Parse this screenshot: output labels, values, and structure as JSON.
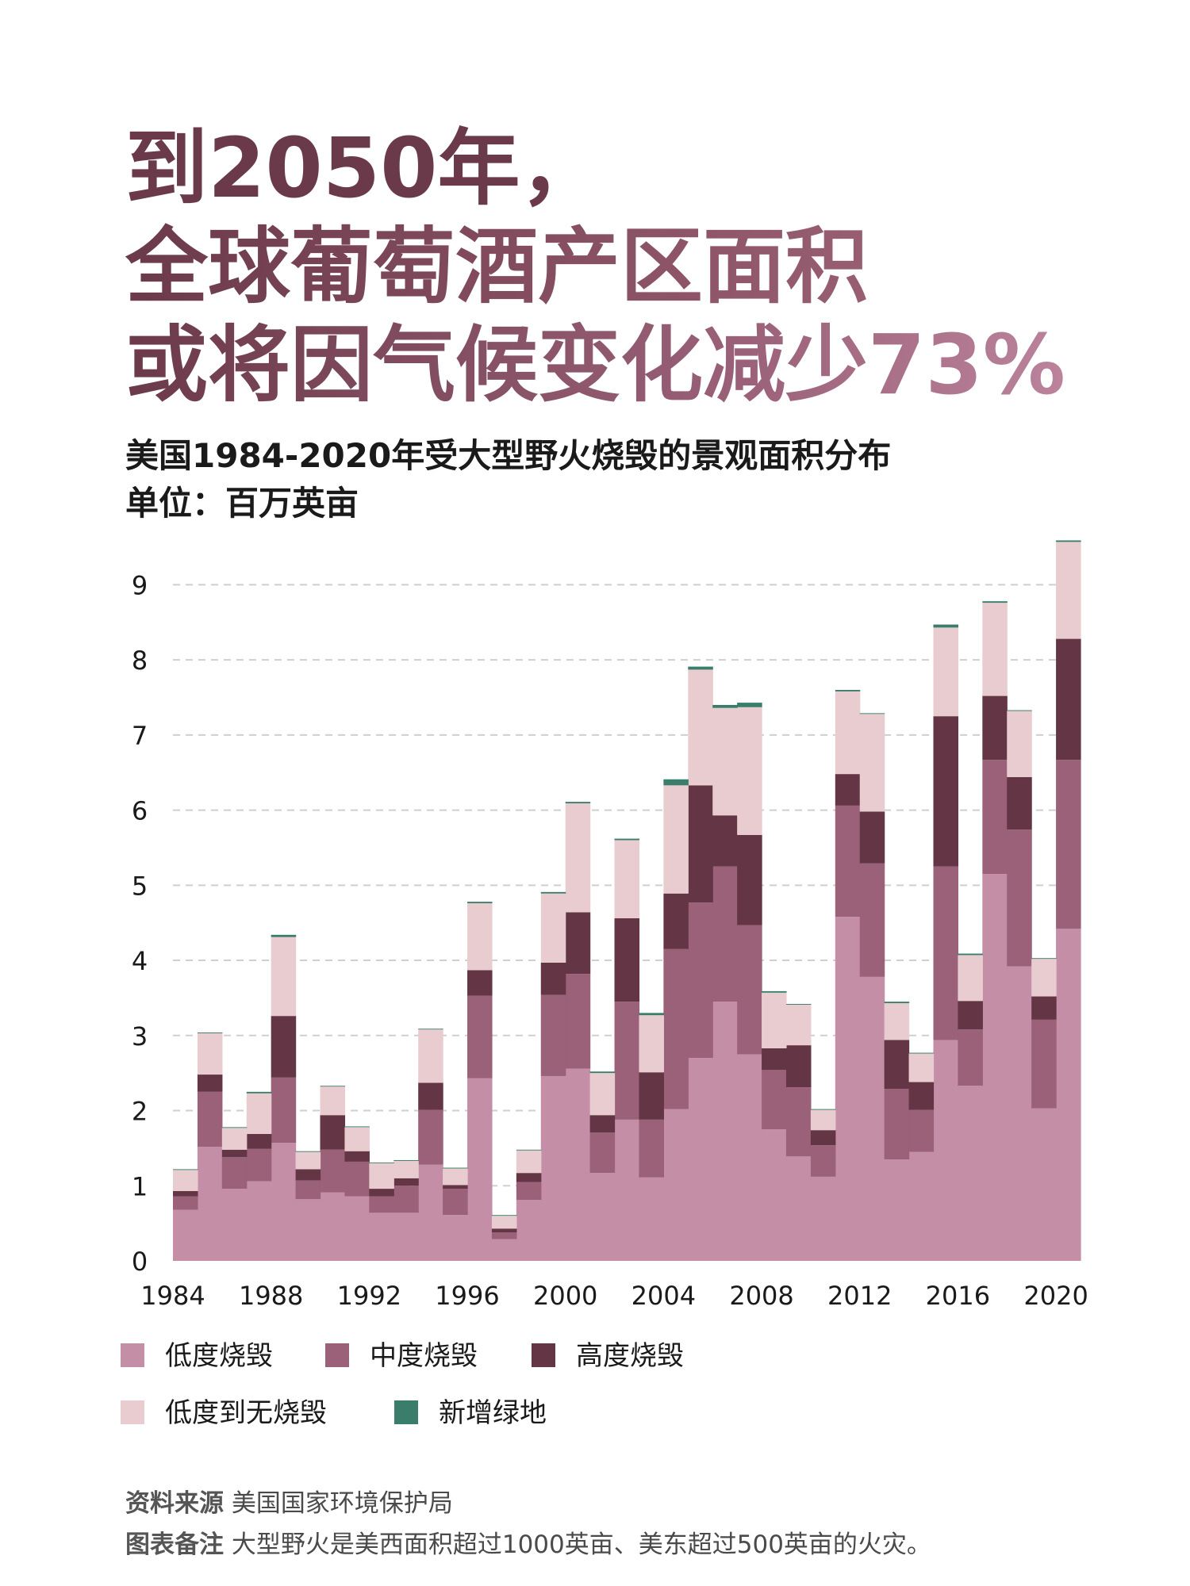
{
  "headline": {
    "line1": "到2050年，",
    "line2": "全球葡萄酒产区面积",
    "line3": "或将因气候变化减少73%"
  },
  "subtitle": {
    "title": "美国1984-2020年受大型野火烧毁的景观面积分布",
    "unit": "单位：百万英亩"
  },
  "colors": {
    "low": "#c48ea7",
    "moderate": "#9a6178",
    "high": "#643645",
    "unburned_low": "#e8cccf",
    "greenness": "#3a7d6a"
  },
  "chart_data": {
    "type": "area",
    "stacked": true,
    "step": true,
    "title": "美国1984-2020年受大型野火烧毁的景观面积分布",
    "ylabel": "单位：百万英亩",
    "ylim": [
      0,
      9.5
    ],
    "yticks": [
      0,
      1,
      2,
      3,
      4,
      5,
      6,
      7,
      8,
      9
    ],
    "xticks": [
      1984,
      1988,
      1992,
      1996,
      2000,
      2004,
      2008,
      2012,
      2016,
      2020
    ],
    "grid": true,
    "years": [
      1984,
      1985,
      1986,
      1987,
      1988,
      1989,
      1990,
      1991,
      1992,
      1993,
      1994,
      1995,
      1996,
      1997,
      1998,
      1999,
      2000,
      2001,
      2002,
      2003,
      2004,
      2005,
      2006,
      2007,
      2008,
      2009,
      2010,
      2011,
      2012,
      2013,
      2014,
      2015,
      2016,
      2017,
      2018,
      2019,
      2020
    ],
    "series": [
      {
        "name": "低度烧毁",
        "key": "low",
        "values": [
          0.68,
          1.52,
          0.96,
          1.06,
          1.57,
          0.82,
          0.91,
          0.86,
          0.64,
          0.64,
          1.28,
          0.61,
          2.43,
          0.29,
          0.81,
          2.46,
          2.56,
          1.17,
          1.88,
          1.11,
          2.02,
          2.7,
          3.45,
          2.75,
          1.75,
          1.39,
          1.12,
          4.58,
          3.78,
          1.35,
          1.45,
          2.94,
          2.33,
          5.15,
          3.92,
          2.03,
          4.42
        ]
      },
      {
        "name": "中度烧毁",
        "key": "moderate",
        "values": [
          0.18,
          0.73,
          0.42,
          0.43,
          0.87,
          0.25,
          0.57,
          0.46,
          0.22,
          0.36,
          0.73,
          0.35,
          1.1,
          0.09,
          0.24,
          1.08,
          1.26,
          0.54,
          1.57,
          0.77,
          2.13,
          2.07,
          1.8,
          1.72,
          0.79,
          0.92,
          0.42,
          1.48,
          1.51,
          0.94,
          0.56,
          2.31,
          0.75,
          1.52,
          1.82,
          1.18,
          2.25
        ]
      },
      {
        "name": "高度烧毁",
        "key": "high",
        "values": [
          0.07,
          0.23,
          0.1,
          0.2,
          0.82,
          0.15,
          0.46,
          0.14,
          0.1,
          0.1,
          0.36,
          0.05,
          0.34,
          0.05,
          0.12,
          0.43,
          0.82,
          0.23,
          1.11,
          0.63,
          0.74,
          1.56,
          0.68,
          1.2,
          0.29,
          0.56,
          0.2,
          0.42,
          0.69,
          0.65,
          0.37,
          2.0,
          0.38,
          0.85,
          0.7,
          0.31,
          1.61
        ]
      },
      {
        "name": "低度到无烧毁",
        "key": "unburned_low",
        "values": [
          0.28,
          0.55,
          0.29,
          0.54,
          1.05,
          0.23,
          0.38,
          0.32,
          0.34,
          0.23,
          0.71,
          0.22,
          0.89,
          0.17,
          0.3,
          0.92,
          1.45,
          0.56,
          1.04,
          0.76,
          1.44,
          1.54,
          1.43,
          1.7,
          0.74,
          0.54,
          0.27,
          1.1,
          1.3,
          0.49,
          0.38,
          1.18,
          0.61,
          1.24,
          0.88,
          0.5,
          1.29
        ]
      },
      {
        "name": "新增绿地",
        "key": "greenness",
        "values": [
          0.01,
          0.01,
          0.01,
          0.02,
          0.03,
          0.01,
          0.01,
          0.01,
          0.01,
          0.01,
          0.01,
          0.01,
          0.02,
          0.01,
          0.01,
          0.02,
          0.02,
          0.02,
          0.02,
          0.03,
          0.08,
          0.04,
          0.04,
          0.06,
          0.02,
          0.01,
          0.01,
          0.02,
          0.01,
          0.02,
          0.01,
          0.04,
          0.02,
          0.02,
          0.01,
          0.01,
          0.02
        ]
      }
    ],
    "legend": [
      "低度烧毁",
      "中度烧毁",
      "高度烧毁",
      "低度到无烧毁",
      "新增绿地"
    ],
    "legend_position": "bottom"
  },
  "footer": {
    "source_label": "资料来源",
    "source_text": "美国国家环境保护局",
    "note_label": "图表备注",
    "note_text": "大型野火是美西面积超过1000英亩、美东超过500英亩的火灾。"
  }
}
